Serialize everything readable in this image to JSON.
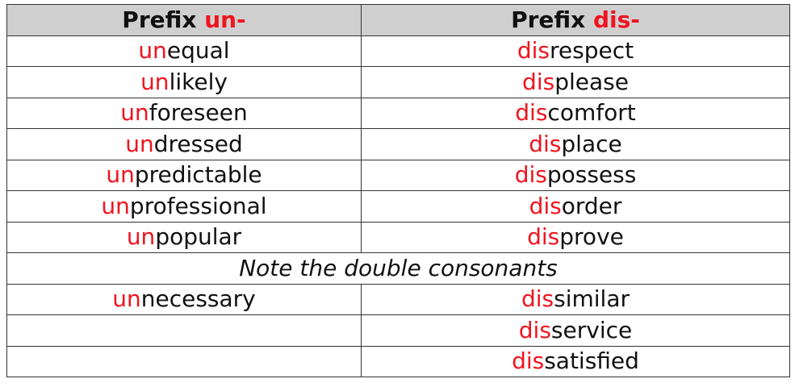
{
  "colors": {
    "prefix": "#f0141e",
    "header_bg": "#d0cfd0"
  },
  "header": [
    {
      "label": "Prefix ",
      "prefix": "un-"
    },
    {
      "label": "Prefix ",
      "prefix": "dis-"
    }
  ],
  "rows": [
    {
      "left": {
        "prefix": "un",
        "rest": "equal"
      },
      "right": {
        "prefix": "dis",
        "rest": "respect"
      }
    },
    {
      "left": {
        "prefix": "un",
        "rest": "likely"
      },
      "right": {
        "prefix": "dis",
        "rest": "please"
      }
    },
    {
      "left": {
        "prefix": "un",
        "rest": "foreseen"
      },
      "right": {
        "prefix": "dis",
        "rest": "comfort"
      }
    },
    {
      "left": {
        "prefix": "un",
        "rest": "dressed"
      },
      "right": {
        "prefix": "dis",
        "rest": "place"
      }
    },
    {
      "left": {
        "prefix": "un",
        "rest": "predictable"
      },
      "right": {
        "prefix": "dis",
        "rest": "possess"
      }
    },
    {
      "left": {
        "prefix": "un",
        "rest": "professional"
      },
      "right": {
        "prefix": "dis",
        "rest": "order"
      }
    },
    {
      "left": {
        "prefix": "un",
        "rest": "popular"
      },
      "right": {
        "prefix": "dis",
        "rest": "prove"
      }
    }
  ],
  "note": "Note the double consonants",
  "double_rows": [
    {
      "left": {
        "prefix": "un",
        "rest": "necessary"
      },
      "right": {
        "prefix": "dis",
        "rest": "similar"
      }
    },
    {
      "left": {
        "prefix": "",
        "rest": ""
      },
      "right": {
        "prefix": "dis",
        "rest": "service"
      }
    },
    {
      "left": {
        "prefix": "",
        "rest": ""
      },
      "right": {
        "prefix": "dis",
        "rest": "satisfied"
      }
    }
  ]
}
